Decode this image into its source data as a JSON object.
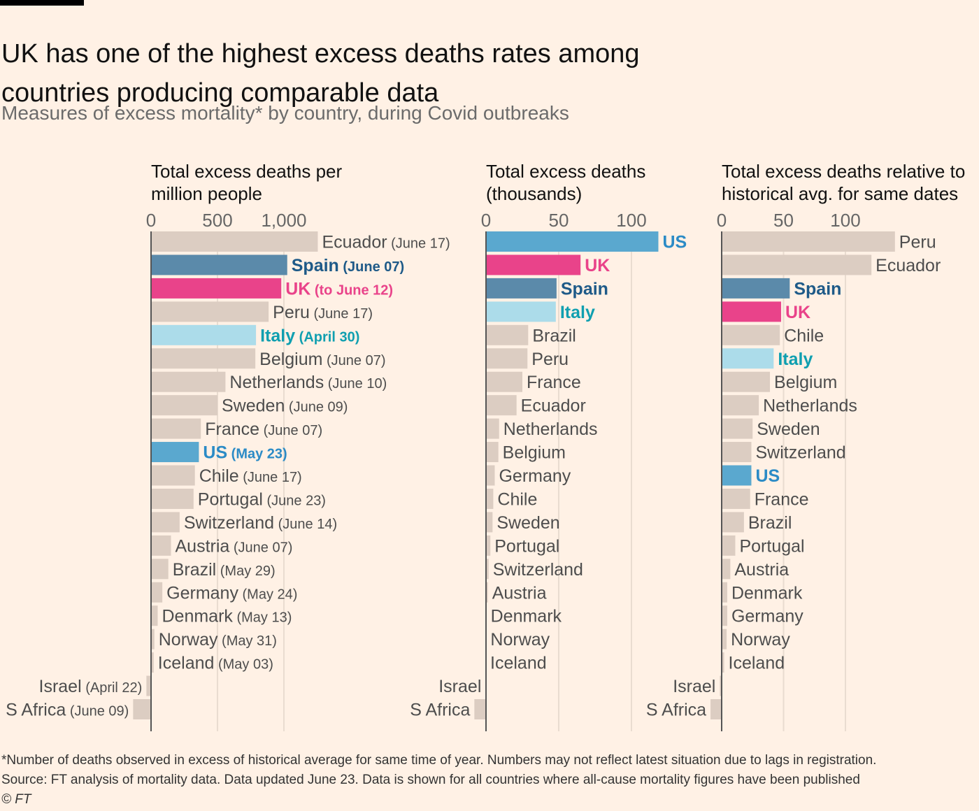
{
  "title": "UK has one of the highest excess deaths rates among countries producing comparable data",
  "subtitle": "Measures of excess mortality* by country, during Covid outbreaks",
  "footnotes": {
    "note": "*Number of deaths observed in excess of historical average for same time of year. Numbers may not reflect latest situation due to lags in registration.",
    "source": "Source: FT analysis of mortality data. Data updated June 23. Data is shown for all countries where all-cause mortality figures have been published",
    "credit": "© FT"
  },
  "colors": {
    "background": "#fff1e5",
    "default_bar": "#dccdc2",
    "default_text": "#4d4d4d",
    "grid": "#e9dcd0",
    "axis": "#555555",
    "US": "#5aa8cf",
    "UK": "#e9438a",
    "Spain": "#5b8aaa",
    "Italy": "#acdcea",
    "US_text": "#2b8bc6",
    "UK_text": "#e9438a",
    "Spain_text": "#1e5a88",
    "Italy_text": "#0f9fb0"
  },
  "chart_data": [
    {
      "type": "bar",
      "orientation": "horizontal",
      "title": "Total excess deaths per million people",
      "title_lines": [
        "Total excess deaths per",
        "million people"
      ],
      "xlim": [
        0,
        1250
      ],
      "xticks": [
        0,
        500,
        1000
      ],
      "xtick_labels": [
        "0",
        "500",
        "1,000"
      ],
      "show_dates": true,
      "rows": [
        {
          "country": "Ecuador",
          "date": "(June 17)",
          "value": 1255
        },
        {
          "country": "Spain",
          "date": "(June 07)",
          "value": 1025,
          "highlight": "Spain"
        },
        {
          "country": "UK",
          "date": "(to June 12)",
          "value": 980,
          "highlight": "UK"
        },
        {
          "country": "Peru",
          "date": "(June 17)",
          "value": 885
        },
        {
          "country": "Italy",
          "date": "(April 30)",
          "value": 790,
          "highlight": "Italy"
        },
        {
          "country": "Belgium",
          "date": "(June 07)",
          "value": 785
        },
        {
          "country": "Netherlands",
          "date": "(June 10)",
          "value": 560
        },
        {
          "country": "Sweden",
          "date": "(June 09)",
          "value": 500
        },
        {
          "country": "France",
          "date": "(June 07)",
          "value": 375
        },
        {
          "country": "US",
          "date": "(May 23)",
          "value": 360,
          "highlight": "US"
        },
        {
          "country": "Chile",
          "date": "(June 17)",
          "value": 330
        },
        {
          "country": "Portugal",
          "date": "(June 23)",
          "value": 320
        },
        {
          "country": "Switzerland",
          "date": "(June 14)",
          "value": 215
        },
        {
          "country": "Austria",
          "date": "(June 07)",
          "value": 150
        },
        {
          "country": "Brazil",
          "date": "(May 29)",
          "value": 130
        },
        {
          "country": "Germany",
          "date": "(May 24)",
          "value": 85
        },
        {
          "country": "Denmark",
          "date": "(May 13)",
          "value": 50
        },
        {
          "country": "Norway",
          "date": "(May 31)",
          "value": 25
        },
        {
          "country": "Iceland",
          "date": "(May 03)",
          "value": 20
        },
        {
          "country": "Israel",
          "date": "(April 22)",
          "value": -35
        },
        {
          "country": "S Africa",
          "date": "(June 09)",
          "value": -135
        }
      ]
    },
    {
      "type": "bar",
      "orientation": "horizontal",
      "title": "Total excess deaths (thousands)",
      "title_lines": [
        "Total excess deaths",
        "(thousands)"
      ],
      "xlim": [
        0,
        118
      ],
      "xticks": [
        0,
        50,
        100
      ],
      "xtick_labels": [
        "0",
        "50",
        "100"
      ],
      "show_dates": false,
      "rows": [
        {
          "country": "US",
          "value": 118.5,
          "highlight": "US"
        },
        {
          "country": "UK",
          "value": 65,
          "highlight": "UK"
        },
        {
          "country": "Spain",
          "value": 48.5,
          "highlight": "Spain"
        },
        {
          "country": "Italy",
          "value": 48,
          "highlight": "Italy"
        },
        {
          "country": "Brazil",
          "value": 29
        },
        {
          "country": "Peru",
          "value": 28.5
        },
        {
          "country": "France",
          "value": 25
        },
        {
          "country": "Ecuador",
          "value": 21
        },
        {
          "country": "Netherlands",
          "value": 9
        },
        {
          "country": "Belgium",
          "value": 8.5
        },
        {
          "country": "Germany",
          "value": 6
        },
        {
          "country": "Chile",
          "value": 5
        },
        {
          "country": "Sweden",
          "value": 4.5
        },
        {
          "country": "Portugal",
          "value": 3
        },
        {
          "country": "Switzerland",
          "value": 1.8
        },
        {
          "country": "Austria",
          "value": 1.3
        },
        {
          "country": "Denmark",
          "value": 0.3
        },
        {
          "country": "Norway",
          "value": 0.2
        },
        {
          "country": "Iceland",
          "value": 0.02
        },
        {
          "country": "Israel",
          "value": -0.3
        },
        {
          "country": "S Africa",
          "value": -8
        }
      ]
    },
    {
      "type": "bar",
      "orientation": "horizontal",
      "title": "Total excess deaths relative to historical avg. for same dates",
      "title_lines": [
        "Total excess deaths relative to",
        "historical avg. for same dates"
      ],
      "xlim": [
        0,
        140
      ],
      "xticks": [
        0,
        50,
        100
      ],
      "xtick_labels": [
        "0",
        "50",
        "100"
      ],
      "unit": "%",
      "show_dates": false,
      "rows": [
        {
          "country": "Peru",
          "value": 140
        },
        {
          "country": "Ecuador",
          "value": 121
        },
        {
          "country": "Spain",
          "value": 55,
          "highlight": "Spain"
        },
        {
          "country": "UK",
          "value": 48,
          "highlight": "UK"
        },
        {
          "country": "Chile",
          "value": 47
        },
        {
          "country": "Italy",
          "value": 42,
          "highlight": "Italy"
        },
        {
          "country": "Belgium",
          "value": 39
        },
        {
          "country": "Netherlands",
          "value": 30
        },
        {
          "country": "Sweden",
          "value": 25
        },
        {
          "country": "Switzerland",
          "value": 24
        },
        {
          "country": "US",
          "value": 24,
          "highlight": "US"
        },
        {
          "country": "France",
          "value": 23
        },
        {
          "country": "Brazil",
          "value": 18
        },
        {
          "country": "Portugal",
          "value": 11
        },
        {
          "country": "Austria",
          "value": 7
        },
        {
          "country": "Denmark",
          "value": 4.5
        },
        {
          "country": "Germany",
          "value": 4.5
        },
        {
          "country": "Norway",
          "value": 4
        },
        {
          "country": "Iceland",
          "value": 2
        },
        {
          "country": "Israel",
          "value": -1.5
        },
        {
          "country": "S Africa",
          "value": -9
        }
      ]
    }
  ]
}
